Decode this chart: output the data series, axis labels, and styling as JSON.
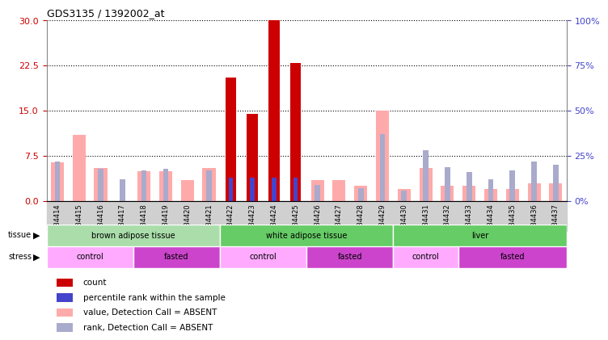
{
  "title": "GDS3135 / 1392002_at",
  "samples": [
    "GSM184414",
    "GSM184415",
    "GSM184416",
    "GSM184417",
    "GSM184418",
    "GSM184419",
    "GSM184420",
    "GSM184421",
    "GSM184422",
    "GSM184423",
    "GSM184424",
    "GSM184425",
    "GSM184426",
    "GSM184427",
    "GSM184428",
    "GSM184429",
    "GSM184430",
    "GSM184431",
    "GSM184432",
    "GSM184433",
    "GSM184434",
    "GSM184435",
    "GSM184436",
    "GSM184437"
  ],
  "count": [
    0,
    0,
    0,
    0,
    0,
    0,
    0,
    0,
    20.5,
    14.5,
    30,
    23,
    0,
    0,
    0,
    0,
    0,
    0,
    0,
    0,
    0,
    0,
    0,
    0
  ],
  "percentile_rank": [
    null,
    null,
    null,
    null,
    null,
    null,
    null,
    null,
    13,
    13,
    13,
    13,
    null,
    null,
    null,
    null,
    null,
    null,
    null,
    null,
    null,
    null,
    null,
    null
  ],
  "value_absent": [
    6.5,
    11,
    5.5,
    null,
    5,
    5,
    3.5,
    5.5,
    null,
    null,
    null,
    null,
    3.5,
    3.5,
    2.5,
    15,
    2,
    5.5,
    2.5,
    2.5,
    2,
    2,
    3,
    3
  ],
  "rank_absent": [
    22,
    null,
    18,
    12,
    17,
    18,
    null,
    17,
    null,
    null,
    null,
    null,
    9,
    null,
    7,
    37,
    6,
    28,
    19,
    16,
    12,
    17,
    22,
    20
  ],
  "tissue_groups": [
    {
      "label": "brown adipose tissue",
      "start": 0,
      "end": 7,
      "color": "#88dd88"
    },
    {
      "label": "white adipose tissue",
      "start": 8,
      "end": 15,
      "color": "#66cc66"
    },
    {
      "label": "liver",
      "start": 16,
      "end": 23,
      "color": "#66cc66"
    }
  ],
  "stress_groups": [
    {
      "label": "control",
      "start": 0,
      "end": 3,
      "color": "#ff99ff"
    },
    {
      "label": "fasted",
      "start": 4,
      "end": 7,
      "color": "#cc44cc"
    },
    {
      "label": "control",
      "start": 8,
      "end": 11,
      "color": "#ff99ff"
    },
    {
      "label": "fasted",
      "start": 12,
      "end": 15,
      "color": "#cc44cc"
    },
    {
      "label": "control",
      "start": 16,
      "end": 18,
      "color": "#ff99ff"
    },
    {
      "label": "fasted",
      "start": 19,
      "end": 23,
      "color": "#cc44cc"
    }
  ],
  "ylim_left": [
    0,
    30
  ],
  "ylim_right": [
    0,
    100
  ],
  "yticks_left": [
    0,
    7.5,
    15,
    22.5,
    30
  ],
  "yticks_right": [
    0,
    25,
    50,
    75,
    100
  ],
  "bar_color_count": "#cc0000",
  "bar_color_rank": "#4444cc",
  "bar_color_value_absent": "#ffaaaa",
  "bar_color_rank_absent": "#aaaacc",
  "background_color": "#ffffff",
  "grid_color": "#dddddd"
}
